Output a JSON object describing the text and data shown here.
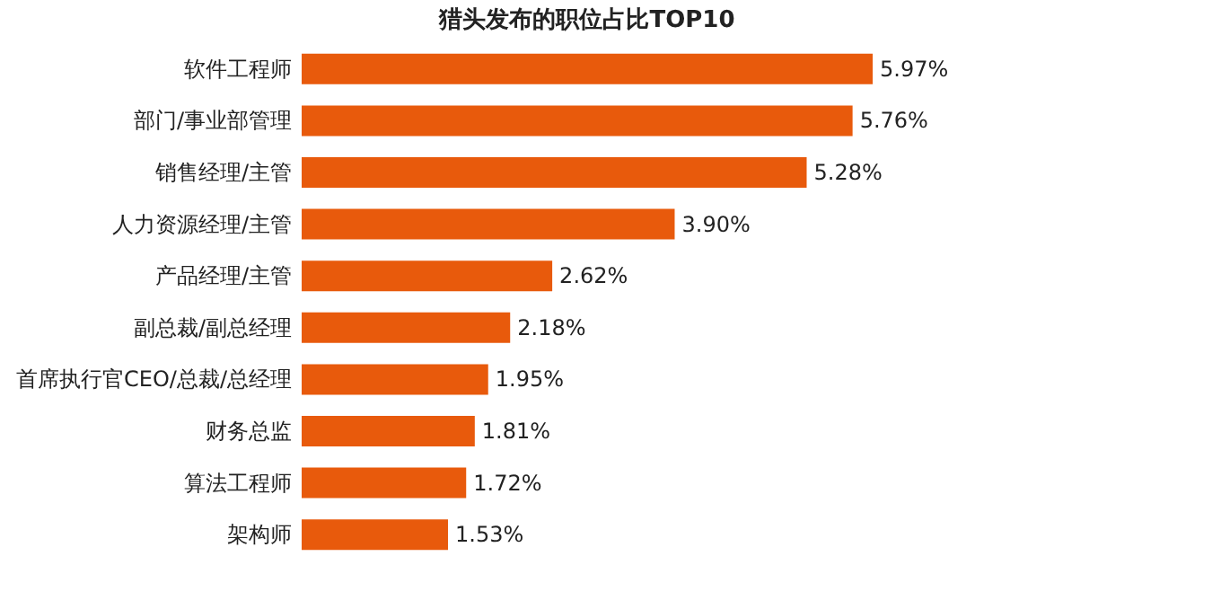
{
  "chart_data": {
    "type": "bar",
    "orientation": "horizontal",
    "title": "猎头发布的职位占比TOP10",
    "categories": [
      "软件工程师",
      "部门/事业部管理",
      "销售经理/主管",
      "人力资源经理/主管",
      "产品经理/主管",
      "副总裁/副总经理",
      "首席执行官CEO/总裁/总经理",
      "财务总监",
      "算法工程师",
      "架构师"
    ],
    "values": [
      5.97,
      5.76,
      5.28,
      3.9,
      2.62,
      2.18,
      1.95,
      1.81,
      1.72,
      1.53
    ],
    "value_labels": [
      "5.97%",
      "5.76%",
      "5.28%",
      "3.90%",
      "2.62%",
      "2.18%",
      "1.95%",
      "1.81%",
      "1.72%",
      "1.53%"
    ],
    "color": "#e85a0c"
  }
}
